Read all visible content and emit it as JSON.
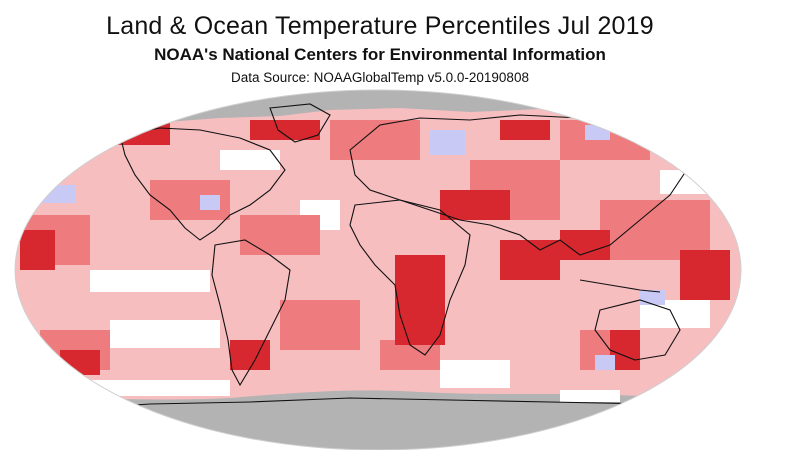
{
  "header": {
    "title": "Land & Ocean Temperature Percentiles Jul 2019",
    "subtitle": "NOAA's National Centers for Environmental Information",
    "source": "Data Source: NOAAGlobalTemp v5.0.0-20190808"
  },
  "map": {
    "projection": "Robinson",
    "legend_visible": false,
    "colors": {
      "record_warmest": "#d7282f",
      "much_warmer": "#ee7b7e",
      "warmer": "#f7bec0",
      "near_average": "#ffffff",
      "cooler": "#c9c9f5",
      "much_cooler": "#9f9fe8",
      "no_data": "#b3b3b3",
      "coastline": "#111111"
    }
  }
}
